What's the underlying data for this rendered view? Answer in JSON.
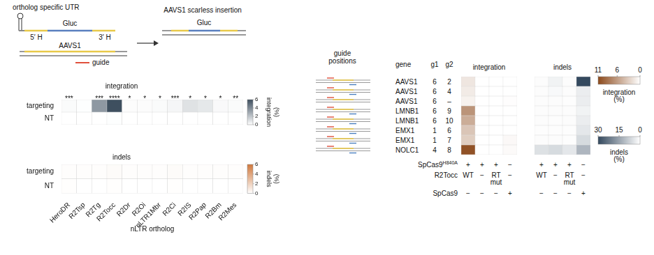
{
  "diagram": {
    "utr_label": "ortholog specific UTR",
    "donor": {
      "insert": "Gluc",
      "left_arm": "5′ H",
      "right_arm": "3′ H"
    },
    "target": {
      "locus": "AAVS1",
      "guide": "guide"
    },
    "product": {
      "title": "AAVS1 scarless insertion",
      "insert": "Gluc"
    }
  },
  "chart_data": [
    {
      "type": "heatmap",
      "title": "integration",
      "categories": [
        "HeroDR",
        "R2Tsp",
        "R2Tg",
        "R2Tocc",
        "R2Dr",
        "R2Oi",
        "nLTR1Mbr",
        "R2Ci",
        "R2IS",
        "R2Pap",
        "R2Bm",
        "R2Mes"
      ],
      "rows": [
        "targeting",
        "NT"
      ],
      "cells": [
        [
          0.15,
          0.05,
          3.5,
          6,
          0.1,
          0.1,
          0.15,
          0.3,
          1.0,
          0.8,
          0.2,
          0.15
        ],
        [
          0,
          0,
          0,
          0.05,
          0,
          0,
          0,
          0,
          0,
          0,
          0,
          0
        ]
      ],
      "annotations": [
        "***",
        null,
        "***",
        "****",
        "*",
        "*",
        "*",
        "***",
        "*",
        "*",
        "*",
        "**"
      ],
      "color": "#3e4f5f",
      "tick_labels": "y",
      "colorbar": {
        "label": "integration (%)",
        "range": [
          0,
          6
        ],
        "ticks": [
          0,
          2,
          4,
          6
        ]
      }
    },
    {
      "type": "heatmap",
      "title": "indels",
      "categories": [
        "HeroDR",
        "R2Tsp",
        "R2Tg",
        "R2Tocc",
        "R2Dr",
        "R2Oi",
        "nLTR1Mbr",
        "R2Ci",
        "R2IS",
        "R2Pap",
        "R2Bm",
        "R2Mes"
      ],
      "rows": [
        "targeting",
        "NT"
      ],
      "cells": [
        [
          0.1,
          0.1,
          0.1,
          0.2,
          0.1,
          0.1,
          0.1,
          0.2,
          0.1,
          0.1,
          0.1,
          0.1
        ],
        [
          0.05,
          0,
          0,
          0.05,
          0,
          0,
          0,
          0.05,
          0,
          0,
          0,
          0
        ]
      ],
      "x_label": "nLTR ortholog",
      "color": "#d0783c",
      "colorbar": {
        "label": "indels (%)",
        "range": [
          0,
          6
        ],
        "ticks": [
          0,
          2,
          4,
          6
        ]
      }
    },
    {
      "type": "heatmap",
      "title": "integration",
      "cells": [
        [
          1.5,
          0,
          0,
          0
        ],
        [
          1.2,
          0,
          0,
          0
        ],
        [
          0.8,
          0,
          0,
          0.1
        ],
        [
          6.5,
          0,
          0,
          0
        ],
        [
          5,
          0,
          0,
          0
        ],
        [
          3.5,
          0,
          0,
          0
        ],
        [
          3,
          0,
          0,
          0.4
        ],
        [
          10.5,
          0,
          0,
          0.3
        ]
      ],
      "color": "#8c4a1c",
      "tick_labels": false,
      "colorbar": {
        "label": "integration (%)",
        "range": [
          0,
          11
        ],
        "ticks": [
          0,
          6,
          11
        ]
      }
    },
    {
      "type": "heatmap",
      "title": "indels",
      "cells": [
        [
          0.5,
          2,
          0.5,
          30
        ],
        [
          0.5,
          1,
          0.5,
          3
        ],
        [
          0.5,
          0.5,
          0.3,
          3
        ],
        [
          0.5,
          0.5,
          0.5,
          2
        ],
        [
          0.5,
          0.3,
          0.5,
          3
        ],
        [
          0.3,
          0.3,
          0.3,
          4
        ],
        [
          0.5,
          0.5,
          0.3,
          6
        ],
        [
          5,
          6,
          4,
          12
        ]
      ],
      "color": "#34495e",
      "tick_labels": false,
      "colorbar": {
        "label": "indels (%)",
        "range": [
          0,
          30
        ],
        "ticks": [
          0,
          15,
          30
        ]
      }
    }
  ],
  "guide_table": {
    "title": "guide positions",
    "columns": [
      "gene",
      "g1",
      "g2"
    ],
    "rows": [
      [
        "AAVS1",
        6,
        2
      ],
      [
        "AAVS1",
        6,
        4
      ],
      [
        "AAVS1",
        6,
        "–"
      ],
      [
        "LMNB1",
        6,
        9
      ],
      [
        "LMNB1",
        6,
        10
      ],
      [
        "EMX1",
        1,
        6
      ],
      [
        "EMX1",
        1,
        7
      ],
      [
        "NOLC1",
        4,
        8
      ]
    ]
  },
  "conditions": [
    {
      "label": "SpCas9",
      "sup": "H840A",
      "values": [
        "+",
        "+",
        "+",
        "−"
      ]
    },
    {
      "label": "R2Tocc",
      "values": [
        "WT",
        "−",
        "RT mut",
        "−"
      ]
    },
    {
      "label": "SpCas9",
      "values": [
        "−",
        "−",
        "−",
        "+"
      ]
    }
  ]
}
